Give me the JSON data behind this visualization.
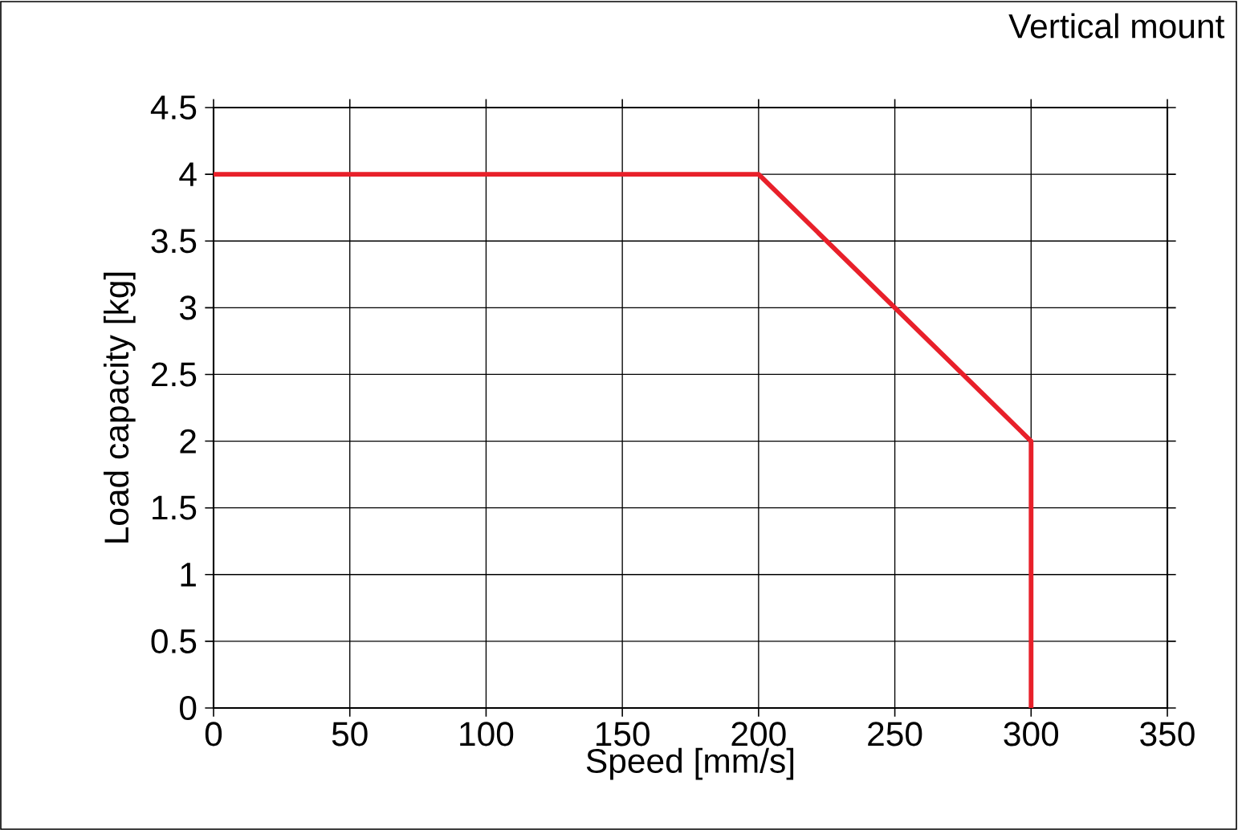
{
  "chart_data": {
    "type": "line",
    "xlabel": "Speed [mm/s]",
    "ylabel": "Load capacity [kg]",
    "annotations": [
      "Vertical mount"
    ],
    "series": [
      {
        "color": "#e8202a",
        "x": [
          0,
          200,
          300,
          300
        ],
        "values": [
          4,
          4,
          2,
          0
        ]
      }
    ],
    "xlim": [
      0,
      350
    ],
    "ylim": [
      0,
      4.5
    ],
    "xticks": [
      0,
      50,
      100,
      150,
      200,
      250,
      300,
      350
    ],
    "yticks": [
      0,
      0.5,
      1,
      1.5,
      2,
      2.5,
      3,
      3.5,
      4,
      4.5
    ],
    "grid": true,
    "marker": "none",
    "line_style": "solid"
  }
}
